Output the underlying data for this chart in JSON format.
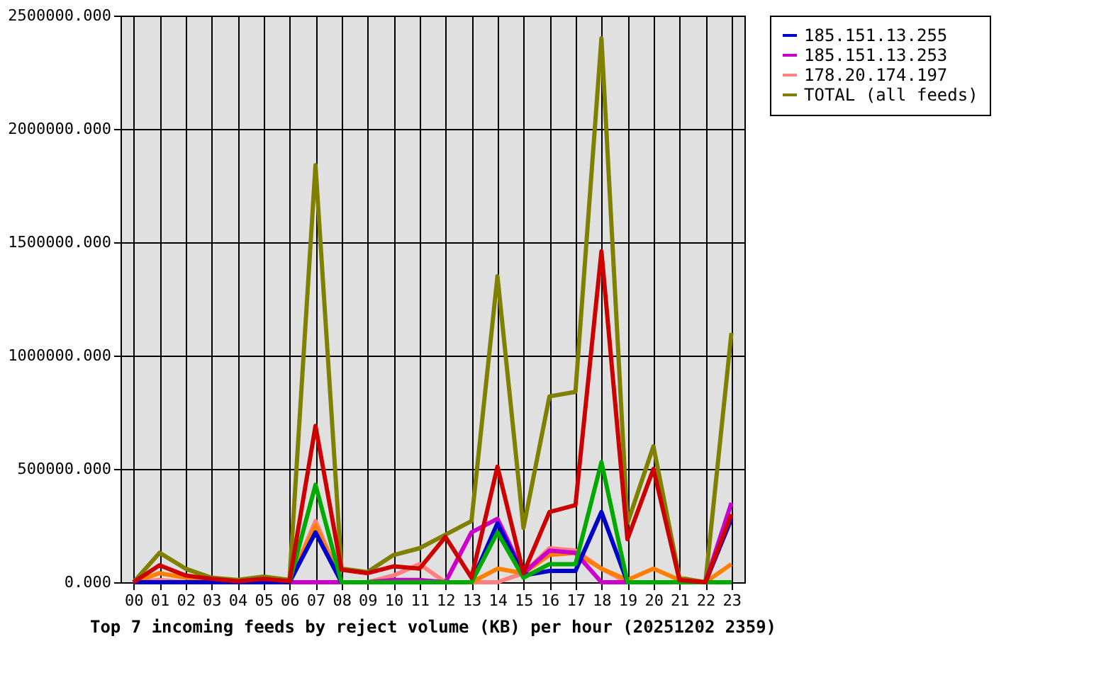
{
  "chart_data": {
    "type": "line",
    "xlabel": "Top 7 incoming feeds by reject volume (KB) per hour (20251202 2359)",
    "categories": [
      "00",
      "01",
      "02",
      "03",
      "04",
      "05",
      "06",
      "07",
      "08",
      "09",
      "10",
      "11",
      "12",
      "13",
      "14",
      "15",
      "16",
      "17",
      "18",
      "19",
      "20",
      "21",
      "22",
      "23"
    ],
    "series": [
      {
        "color": "#cc0000",
        "values": [
          0,
          75000,
          30000,
          15000,
          5000,
          15000,
          5000,
          690000,
          55000,
          40000,
          70000,
          60000,
          200000,
          20000,
          510000,
          40000,
          310000,
          340000,
          1460000,
          190000,
          500000,
          10000,
          0,
          300000
        ]
      },
      {
        "color": "#00aa00",
        "values": [
          null,
          null,
          null,
          null,
          null,
          null,
          0,
          430000,
          0,
          0,
          0,
          0,
          0,
          0,
          220000,
          20000,
          80000,
          80000,
          530000,
          0,
          0,
          0,
          0,
          0
        ]
      },
      {
        "name": "185.151.13.255",
        "color": "#0000cc",
        "values": [
          0,
          0,
          0,
          0,
          0,
          0,
          0,
          220000,
          0,
          0,
          0,
          0,
          0,
          0,
          260000,
          30000,
          50000,
          50000,
          310000,
          0,
          0,
          0,
          0,
          280000
        ]
      },
      {
        "name": "185.151.13.253",
        "color": "#cc00cc",
        "values": [
          null,
          null,
          null,
          null,
          null,
          null,
          0,
          0,
          0,
          0,
          10000,
          10000,
          0,
          220000,
          280000,
          40000,
          140000,
          130000,
          0,
          0,
          0,
          0,
          0,
          350000
        ]
      },
      {
        "name": "178.20.174.197",
        "color": "#ff8080",
        "values": [
          0,
          10000,
          0,
          0,
          0,
          0,
          0,
          270000,
          0,
          0,
          30000,
          80000,
          0,
          0,
          0,
          40000,
          150000,
          140000,
          60000,
          0,
          0,
          0,
          0,
          0
        ]
      },
      {
        "color": "#ff8000",
        "values": [
          0,
          40000,
          20000,
          10000,
          5000,
          10000,
          5000,
          250000,
          0,
          0,
          0,
          0,
          0,
          0,
          60000,
          40000,
          120000,
          130000,
          60000,
          10000,
          60000,
          10000,
          0,
          80000
        ]
      },
      {
        "name": "TOTAL (all feeds)",
        "color": "#808000",
        "values": [
          0,
          130000,
          60000,
          20000,
          10000,
          25000,
          10000,
          1840000,
          60000,
          45000,
          120000,
          150000,
          210000,
          270000,
          1350000,
          240000,
          820000,
          840000,
          2400000,
          260000,
          600000,
          20000,
          0,
          1100000
        ]
      }
    ],
    "ylim": [
      0,
      2500000
    ],
    "yticks": [
      {
        "value": 0,
        "label": "0.000"
      },
      {
        "value": 500000,
        "label": "500000.000"
      },
      {
        "value": 1000000,
        "label": "1000000.000"
      },
      {
        "value": 1500000,
        "label": "1500000.000"
      },
      {
        "value": 2000000,
        "label": "2000000.000"
      },
      {
        "value": 2500000,
        "label": "2500000.000"
      }
    ],
    "grid": true,
    "legend": "right",
    "marker": "none",
    "line_style": "solid"
  }
}
